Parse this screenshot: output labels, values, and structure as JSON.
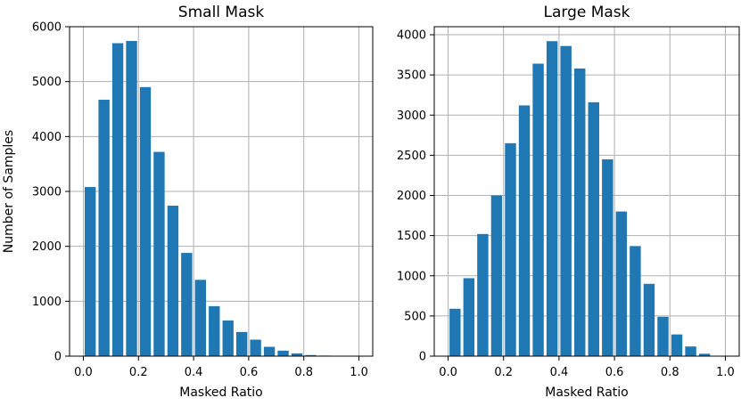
{
  "figure": {
    "shared_ylabel": "Number of Samples"
  },
  "chart_data": [
    {
      "type": "bar",
      "title": "Small Mask",
      "xlabel": "Masked Ratio",
      "ylabel": "Number of Samples",
      "xlim": [
        -0.05,
        1.05
      ],
      "ylim": [
        0,
        6000
      ],
      "xticks": [
        0.0,
        0.2,
        0.4,
        0.6,
        0.8,
        1.0
      ],
      "xtick_labels": [
        "0.0",
        "0.2",
        "0.4",
        "0.6",
        "0.8",
        "1.0"
      ],
      "yticks": [
        0,
        1000,
        2000,
        3000,
        4000,
        5000,
        6000
      ],
      "ytick_labels": [
        "0",
        "1000",
        "2000",
        "3000",
        "4000",
        "5000",
        "6000"
      ],
      "grid": true,
      "bar_color": "#1f77b4",
      "x": [
        0.025,
        0.075,
        0.125,
        0.175,
        0.225,
        0.275,
        0.325,
        0.375,
        0.425,
        0.475,
        0.525,
        0.575,
        0.625,
        0.675,
        0.725,
        0.775,
        0.825,
        0.875,
        0.925,
        0.975
      ],
      "values": [
        3080,
        4670,
        5700,
        5740,
        4900,
        3720,
        2740,
        1880,
        1390,
        910,
        650,
        440,
        300,
        170,
        100,
        50,
        20,
        10,
        0,
        0
      ]
    },
    {
      "type": "bar",
      "title": "Large Mask",
      "xlabel": "Masked Ratio",
      "ylabel": "",
      "xlim": [
        -0.05,
        1.05
      ],
      "ylim": [
        0,
        4100
      ],
      "xticks": [
        0.0,
        0.2,
        0.4,
        0.6,
        0.8,
        1.0
      ],
      "xtick_labels": [
        "0.0",
        "0.2",
        "0.4",
        "0.6",
        "0.8",
        "1.0"
      ],
      "yticks": [
        0,
        500,
        1000,
        1500,
        2000,
        2500,
        3000,
        3500,
        4000
      ],
      "ytick_labels": [
        "0",
        "500",
        "1000",
        "1500",
        "2000",
        "2500",
        "3000",
        "3500",
        "4000"
      ],
      "grid": true,
      "bar_color": "#1f77b4",
      "x": [
        0.025,
        0.075,
        0.125,
        0.175,
        0.225,
        0.275,
        0.325,
        0.375,
        0.425,
        0.475,
        0.525,
        0.575,
        0.625,
        0.675,
        0.725,
        0.775,
        0.825,
        0.875,
        0.925,
        0.975
      ],
      "values": [
        590,
        970,
        1520,
        2000,
        2650,
        3120,
        3640,
        3920,
        3860,
        3580,
        3160,
        2450,
        1800,
        1370,
        900,
        490,
        270,
        120,
        30,
        0
      ]
    }
  ]
}
